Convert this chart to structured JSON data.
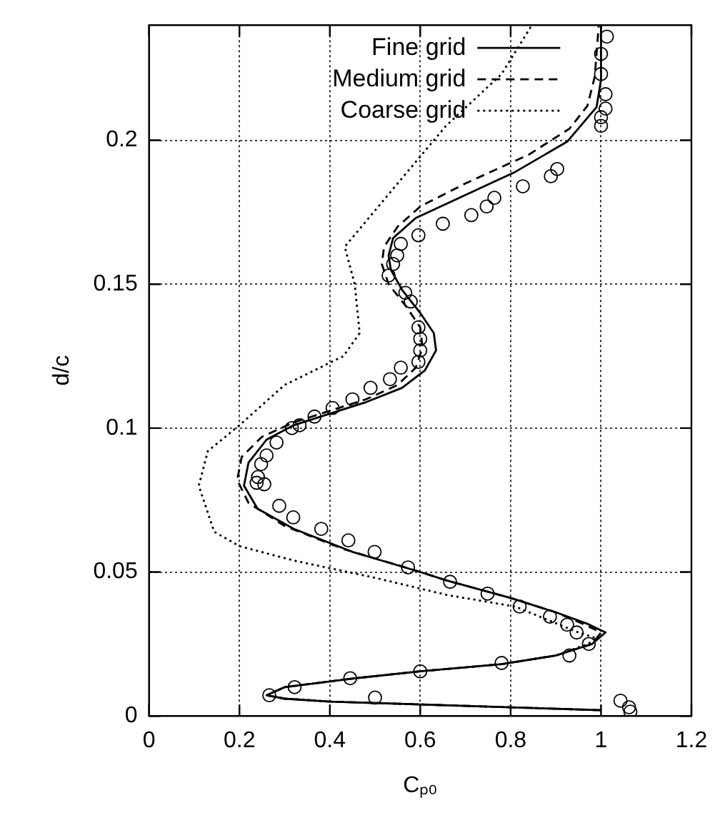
{
  "chart_data": {
    "type": "line",
    "xlabel": "Cₚ₀",
    "ylabel": "d/c",
    "xlim": [
      0,
      1.2
    ],
    "xticks": [
      0,
      0.2,
      0.4,
      0.6,
      0.8,
      1,
      1.2
    ],
    "ylim": [
      0,
      0.24
    ],
    "yticks": [
      0,
      0.05,
      0.1,
      0.15,
      0.2
    ],
    "grid": true,
    "legend": "top",
    "series": [
      {
        "name": "Fine grid",
        "color": "#000000",
        "line_style": "solid",
        "marker": "none",
        "x": [
          1.0,
          0.8,
          0.6,
          0.4,
          0.3,
          0.26,
          0.3,
          0.45,
          0.6,
          0.78,
          0.9,
          0.98,
          1.01,
          0.97,
          0.9,
          0.8,
          0.66,
          0.6,
          0.45,
          0.32,
          0.24,
          0.21,
          0.22,
          0.26,
          0.32,
          0.4,
          0.48,
          0.56,
          0.61,
          0.635,
          0.63,
          0.6,
          0.56,
          0.535,
          0.53,
          0.54,
          0.59,
          0.7,
          0.81,
          0.925,
          0.99,
          1.0,
          1.0
        ],
        "values": [
          0.002,
          0.003,
          0.004,
          0.005,
          0.006,
          0.0072,
          0.01,
          0.013,
          0.0155,
          0.018,
          0.021,
          0.025,
          0.029,
          0.032,
          0.036,
          0.041,
          0.047,
          0.05,
          0.057,
          0.065,
          0.072,
          0.08,
          0.088,
          0.096,
          0.101,
          0.105,
          0.109,
          0.114,
          0.12,
          0.127,
          0.133,
          0.14,
          0.148,
          0.155,
          0.16,
          0.166,
          0.173,
          0.181,
          0.189,
          0.1995,
          0.2115,
          0.221,
          0.24
        ]
      },
      {
        "name": "Medium grid",
        "color": "#000000",
        "line_style": "dashed",
        "marker": "none",
        "x": [
          1.0,
          0.8,
          0.6,
          0.4,
          0.3,
          0.26,
          0.3,
          0.45,
          0.6,
          0.78,
          0.9,
          0.98,
          1.0,
          0.96,
          0.9,
          0.8,
          0.66,
          0.58,
          0.43,
          0.3,
          0.22,
          0.195,
          0.205,
          0.25,
          0.32,
          0.4,
          0.48,
          0.55,
          0.59,
          0.605,
          0.6,
          0.57,
          0.53,
          0.515,
          0.52,
          0.55,
          0.6,
          0.7,
          0.84,
          0.93,
          0.97,
          0.986,
          0.995
        ],
        "values": [
          0.002,
          0.003,
          0.004,
          0.005,
          0.006,
          0.0072,
          0.01,
          0.013,
          0.0155,
          0.018,
          0.021,
          0.025,
          0.029,
          0.032,
          0.036,
          0.041,
          0.047,
          0.051,
          0.058,
          0.066,
          0.074,
          0.082,
          0.09,
          0.097,
          0.102,
          0.106,
          0.11,
          0.115,
          0.121,
          0.128,
          0.135,
          0.142,
          0.15,
          0.157,
          0.163,
          0.17,
          0.177,
          0.185,
          0.195,
          0.204,
          0.212,
          0.222,
          0.24
        ]
      },
      {
        "name": "Coarse grid",
        "color": "#000000",
        "line_style": "dotted",
        "marker": "none",
        "x": [
          1.0,
          0.8,
          0.6,
          0.4,
          0.3,
          0.26,
          0.3,
          0.45,
          0.6,
          0.78,
          0.9,
          0.97,
          0.99,
          0.95,
          0.81,
          0.66,
          0.5,
          0.32,
          0.2,
          0.144,
          0.11,
          0.13,
          0.2,
          0.3,
          0.43,
          0.466,
          0.455,
          0.433,
          0.55,
          0.657,
          0.78,
          0.847
        ],
        "values": [
          0.002,
          0.003,
          0.004,
          0.005,
          0.006,
          0.0072,
          0.01,
          0.013,
          0.0155,
          0.018,
          0.021,
          0.025,
          0.027,
          0.029,
          0.038,
          0.042,
          0.048,
          0.054,
          0.059,
          0.064,
          0.08,
          0.092,
          0.101,
          0.115,
          0.125,
          0.133,
          0.15,
          0.163,
          0.185,
          0.205,
          0.223,
          0.24
        ]
      },
      {
        "type": "scatter",
        "color": "#000000",
        "marker": "circle",
        "x": [
          1.013,
          1.0,
          1.0,
          1.01,
          1.01,
          1.0,
          1.0,
          0.903,
          0.889,
          0.827,
          0.764,
          0.747,
          0.713,
          0.65,
          0.596,
          0.557,
          0.549,
          0.54,
          0.53,
          0.567,
          0.579,
          0.596,
          0.6,
          0.6,
          0.596,
          0.557,
          0.533,
          0.49,
          0.45,
          0.406,
          0.366,
          0.333,
          0.316,
          0.282,
          0.26,
          0.248,
          0.241,
          0.238,
          0.255,
          0.288,
          0.319,
          0.381,
          0.441,
          0.499,
          0.573,
          0.666,
          0.749,
          0.82,
          0.887,
          0.925,
          0.946,
          0.973,
          0.93,
          0.78,
          0.6,
          0.445,
          0.322,
          0.266,
          0.5,
          1.043,
          1.062,
          1.065
        ],
        "values": [
          0.236,
          0.23,
          0.223,
          0.216,
          0.211,
          0.208,
          0.205,
          0.19,
          0.1875,
          0.184,
          0.18,
          0.177,
          0.174,
          0.171,
          0.167,
          0.164,
          0.16,
          0.157,
          0.153,
          0.147,
          0.144,
          0.135,
          0.131,
          0.127,
          0.123,
          0.121,
          0.117,
          0.114,
          0.11,
          0.107,
          0.104,
          0.101,
          0.1,
          0.095,
          0.0905,
          0.0875,
          0.083,
          0.081,
          0.0805,
          0.073,
          0.069,
          0.065,
          0.061,
          0.057,
          0.0516,
          0.0466,
          0.0425,
          0.038,
          0.0345,
          0.0317,
          0.029,
          0.025,
          0.021,
          0.0184,
          0.0155,
          0.0131,
          0.01,
          0.0072,
          0.0064,
          0.0053,
          0.003,
          0.0015
        ]
      }
    ]
  }
}
